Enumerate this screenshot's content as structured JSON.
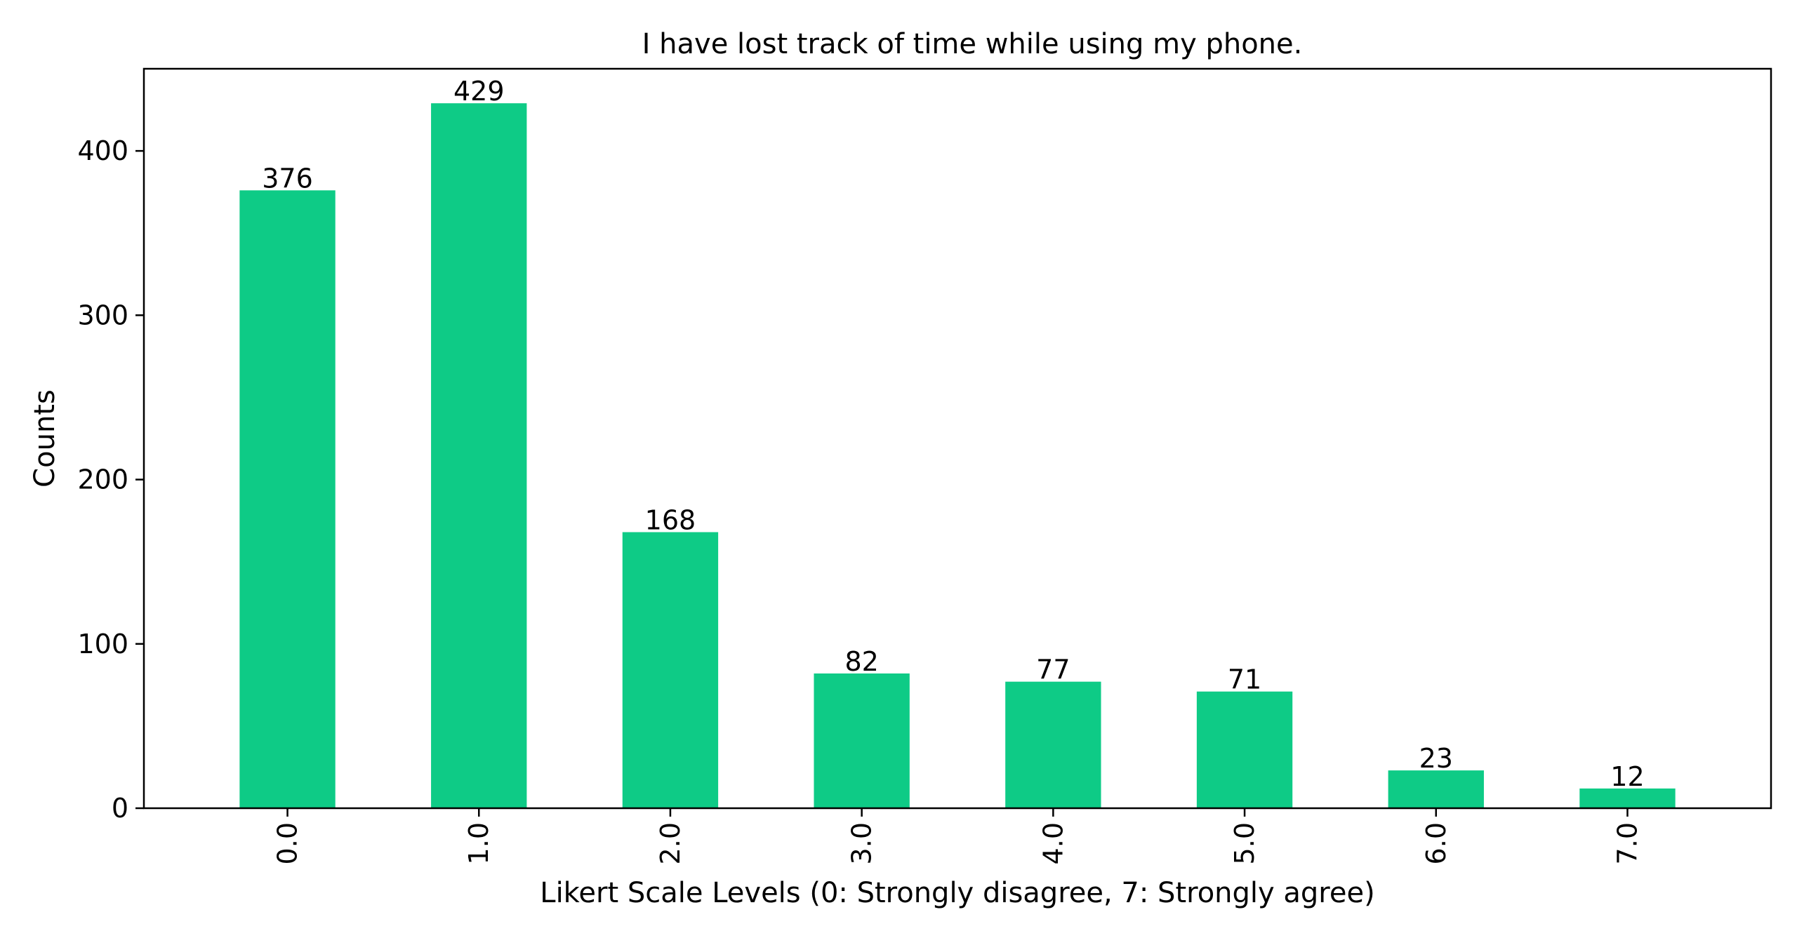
{
  "chart_data": {
    "type": "bar",
    "title": "I have lost track of time while using my phone.",
    "xlabel": "Likert Scale Levels (0: Strongly disagree, 7: Strongly agree)",
    "ylabel": "Counts",
    "categories": [
      "0.0",
      "1.0",
      "2.0",
      "3.0",
      "4.0",
      "5.0",
      "6.0",
      "7.0"
    ],
    "values": [
      376,
      429,
      168,
      82,
      77,
      71,
      23,
      12
    ],
    "data_labels": [
      "376",
      "429",
      "168",
      "82",
      "77",
      "71",
      "23",
      "12"
    ],
    "ylim": [
      0,
      450
    ],
    "yticks": [
      0,
      100,
      200,
      300,
      400
    ],
    "ytick_labels": [
      "0",
      "100",
      "200",
      "300",
      "400"
    ],
    "grid": false,
    "legend": "none",
    "bar_color": "#0ecb86",
    "x_tick_rotation": "vertical"
  }
}
